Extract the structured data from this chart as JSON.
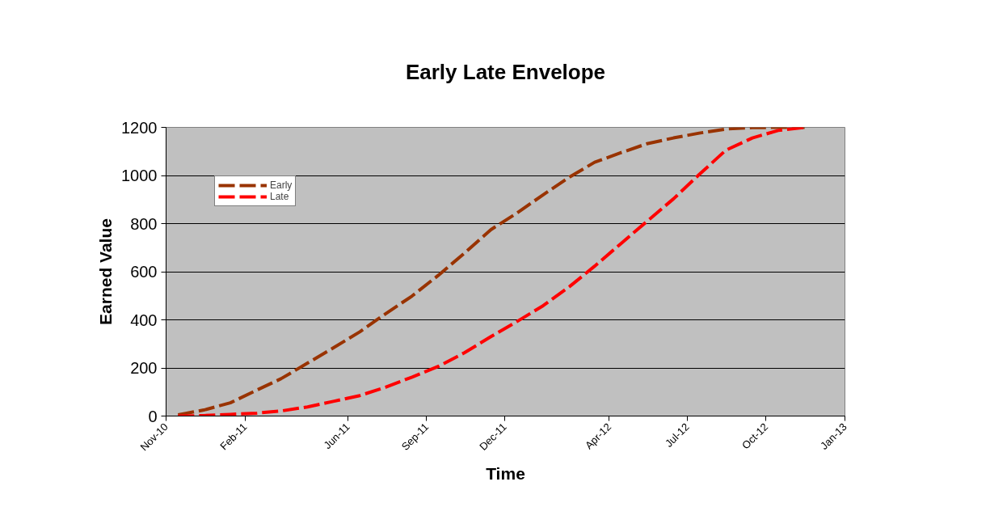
{
  "chart_data": {
    "type": "line",
    "title": "Early Late Envelope",
    "xlabel": "Time",
    "ylabel": "Earned Value",
    "x": [
      "2010-11-15",
      "2010-12-15",
      "2011-01-15",
      "2011-02-15",
      "2011-03-15",
      "2011-04-15",
      "2011-05-15",
      "2011-06-15",
      "2011-07-15",
      "2011-08-15",
      "2011-09-15",
      "2011-10-15",
      "2011-11-15",
      "2011-12-15",
      "2012-01-15",
      "2012-02-15",
      "2012-03-15",
      "2012-04-15",
      "2012-05-15",
      "2012-06-15",
      "2012-07-15",
      "2012-08-15",
      "2012-09-15",
      "2012-10-15",
      "2012-11-15"
    ],
    "series": [
      {
        "name": "Early",
        "color": "#993300",
        "values": [
          5,
          25,
          55,
          108,
          155,
          220,
          283,
          350,
          425,
          499,
          586,
          677,
          775,
          843,
          920,
          994,
          1055,
          1095,
          1132,
          1156,
          1176,
          1193,
          1199,
          1200,
          1200
        ]
      },
      {
        "name": "Late",
        "color": "#ff0000",
        "values": [
          0,
          2,
          7,
          12,
          21,
          38,
          61,
          85,
          120,
          162,
          207,
          263,
          330,
          392,
          459,
          539,
          623,
          718,
          809,
          903,
          1004,
          1105,
          1156,
          1187,
          1200
        ]
      }
    ],
    "xlim": [
      "2010-11-01",
      "2013-01-01"
    ],
    "xticks": [
      {
        "value": "2010-11-01",
        "label": "Nov-10"
      },
      {
        "value": "2011-02-01",
        "label": "Feb-11"
      },
      {
        "value": "2011-06-01",
        "label": "Jun-11"
      },
      {
        "value": "2011-09-01",
        "label": "Sep-11"
      },
      {
        "value": "2011-12-01",
        "label": "Dec-11"
      },
      {
        "value": "2012-04-01",
        "label": "Apr-12"
      },
      {
        "value": "2012-07-01",
        "label": "Jul-12"
      },
      {
        "value": "2012-10-01",
        "label": "Oct-12"
      },
      {
        "value": "2013-01-01",
        "label": "Jan-13"
      }
    ],
    "ylim": [
      0,
      1200
    ],
    "yticks": [
      0,
      200,
      400,
      600,
      800,
      1000,
      1200
    ],
    "grid": "y",
    "legend": "top left",
    "line_style": "dashed",
    "marker": "none"
  }
}
